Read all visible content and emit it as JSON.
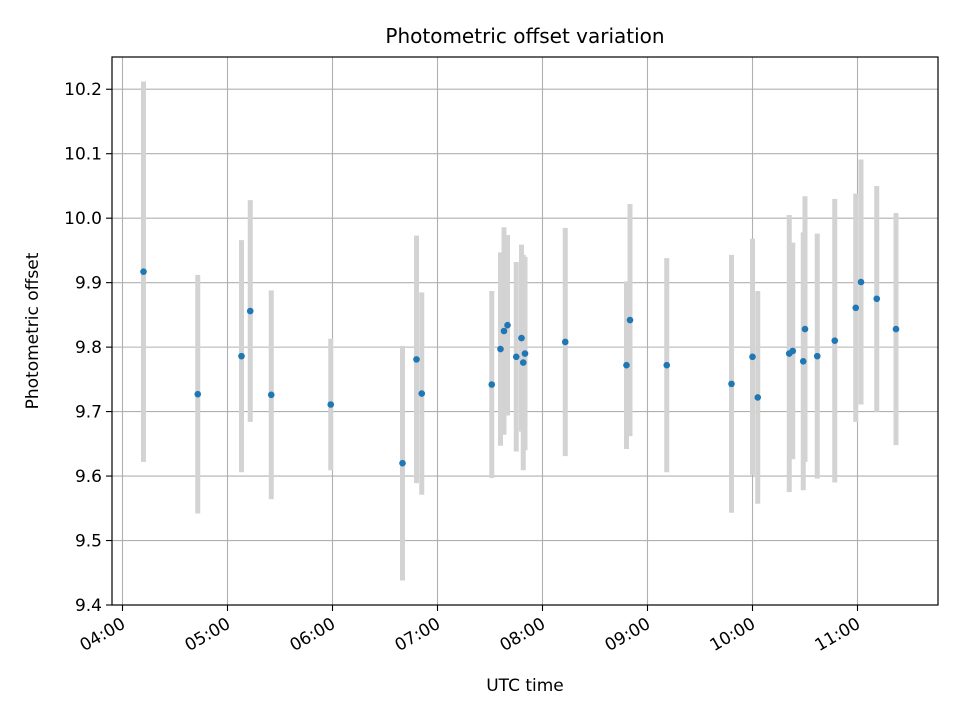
{
  "chart_data": {
    "type": "scatter",
    "title": "Photometric offset variation",
    "xlabel": "UTC time",
    "ylabel": "Photometric offset",
    "x_ticks": [
      "04:00",
      "05:00",
      "06:00",
      "07:00",
      "08:00",
      "09:00",
      "10:00",
      "11:00"
    ],
    "y_ticks": [
      "9.4",
      "9.5",
      "9.6",
      "9.7",
      "9.8",
      "9.9",
      "10.0",
      "10.1",
      "10.2"
    ],
    "xlim": [
      "03:54",
      "11:46"
    ],
    "ylim": [
      9.4,
      10.25
    ],
    "grid": true,
    "marker_color": "#1f77b4",
    "errorbar_color": "#d3d3d3",
    "points": [
      {
        "x": "04:12",
        "y": 9.917,
        "err": 0.295
      },
      {
        "x": "04:43",
        "y": 9.727,
        "err": 0.185
      },
      {
        "x": "05:08",
        "y": 9.786,
        "err": 0.18
      },
      {
        "x": "05:13",
        "y": 9.856,
        "err": 0.172
      },
      {
        "x": "05:25",
        "y": 9.726,
        "err": 0.162
      },
      {
        "x": "05:59",
        "y": 9.711,
        "err": 0.102
      },
      {
        "x": "06:40",
        "y": 9.62,
        "err": 0.182
      },
      {
        "x": "06:48",
        "y": 9.781,
        "err": 0.192
      },
      {
        "x": "06:51",
        "y": 9.728,
        "err": 0.157
      },
      {
        "x": "07:31",
        "y": 9.742,
        "err": 0.145
      },
      {
        "x": "07:36",
        "y": 9.797,
        "err": 0.15
      },
      {
        "x": "07:38",
        "y": 9.825,
        "err": 0.161
      },
      {
        "x": "07:40",
        "y": 9.834,
        "err": 0.14
      },
      {
        "x": "07:45",
        "y": 9.785,
        "err": 0.147
      },
      {
        "x": "07:48",
        "y": 9.814,
        "err": 0.145
      },
      {
        "x": "07:49",
        "y": 9.776,
        "err": 0.167
      },
      {
        "x": "07:50",
        "y": 9.79,
        "err": 0.15
      },
      {
        "x": "08:13",
        "y": 9.808,
        "err": 0.177
      },
      {
        "x": "08:48",
        "y": 9.772,
        "err": 0.13
      },
      {
        "x": "08:50",
        "y": 9.842,
        "err": 0.18
      },
      {
        "x": "09:11",
        "y": 9.772,
        "err": 0.166
      },
      {
        "x": "09:48",
        "y": 9.743,
        "err": 0.2
      },
      {
        "x": "10:00",
        "y": 9.785,
        "err": 0.183
      },
      {
        "x": "10:03",
        "y": 9.722,
        "err": 0.165
      },
      {
        "x": "10:21",
        "y": 9.79,
        "err": 0.215
      },
      {
        "x": "10:23",
        "y": 9.794,
        "err": 0.168
      },
      {
        "x": "10:29",
        "y": 9.778,
        "err": 0.2
      },
      {
        "x": "10:30",
        "y": 9.828,
        "err": 0.206
      },
      {
        "x": "10:37",
        "y": 9.786,
        "err": 0.19
      },
      {
        "x": "10:47",
        "y": 9.81,
        "err": 0.22
      },
      {
        "x": "10:59",
        "y": 9.861,
        "err": 0.177
      },
      {
        "x": "11:02",
        "y": 9.901,
        "err": 0.19
      },
      {
        "x": "11:11",
        "y": 9.875,
        "err": 0.175
      },
      {
        "x": "11:22",
        "y": 9.828,
        "err": 0.18
      }
    ]
  }
}
